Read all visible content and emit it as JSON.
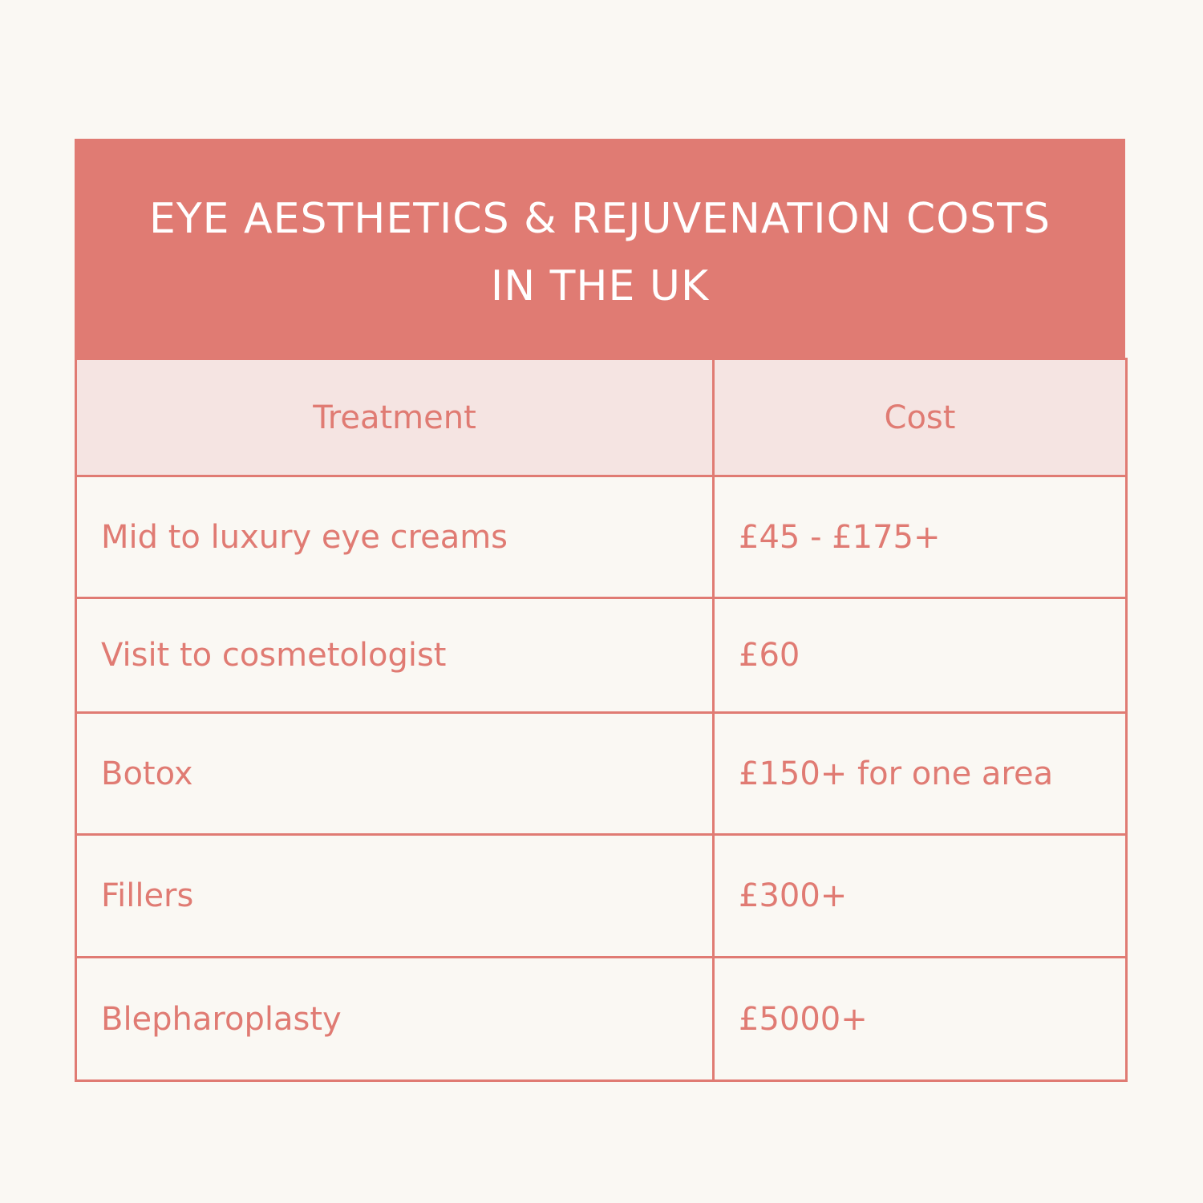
{
  "title": {
    "line1": "EYE AESTHETICS & REJUVENATION COSTS",
    "line2": "IN THE UK"
  },
  "table": {
    "headers": [
      "Treatment",
      "Cost"
    ],
    "rows": [
      {
        "treatment": "Mid to luxury eye creams",
        "cost": "£45 - £175+"
      },
      {
        "treatment": "Visit to cosmetologist",
        "cost": "£60"
      },
      {
        "treatment": "Botox",
        "cost": "£150+ for one area"
      },
      {
        "treatment": "Fillers",
        "cost": "£300+"
      },
      {
        "treatment": "Blepharoplasty",
        "cost": "£5000+"
      }
    ]
  },
  "colors": {
    "accent": "#e07b73",
    "header_bg": "#f5e4e2",
    "page_bg": "#faf8f3",
    "title_text": "#ffffff"
  }
}
